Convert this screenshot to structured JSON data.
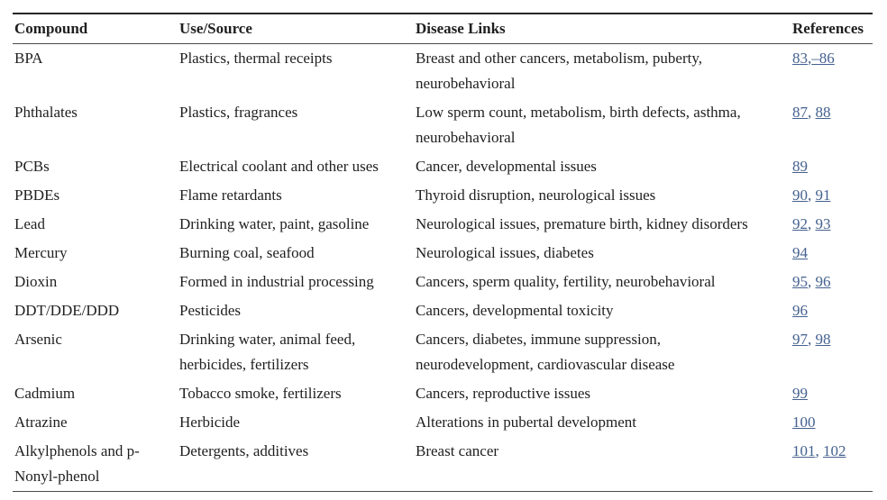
{
  "colors": {
    "link": "#44618f",
    "text": "#1f1f1f",
    "rule_dark": "#262626",
    "rule_mid": "#4a4a4a",
    "background": "#ffffff"
  },
  "table": {
    "columns": [
      "Compound",
      "Use/Source",
      "Disease Links",
      "References"
    ],
    "rows": [
      {
        "compound": "BPA",
        "use_source": "Plastics, thermal receipts",
        "disease_links": "Breast and other cancers, metabolism, puberty, neurobehavioral",
        "references": [
          {
            "text": "83",
            "link": true
          },
          {
            "text": ",",
            "link": false
          },
          {
            "text": "–86",
            "link": true
          }
        ]
      },
      {
        "compound": "Phthalates",
        "use_source": "Plastics, fragrances",
        "disease_links": "Low sperm count, metabolism, birth defects, asthma, neurobehavioral",
        "references": [
          {
            "text": "87",
            "link": true
          },
          {
            "text": ", ",
            "link": false
          },
          {
            "text": "88",
            "link": true
          }
        ]
      },
      {
        "compound": "PCBs",
        "use_source": "Electrical coolant and other uses",
        "disease_links": "Cancer, developmental issues",
        "references": [
          {
            "text": "89",
            "link": true
          }
        ]
      },
      {
        "compound": "PBDEs",
        "use_source": "Flame retardants",
        "disease_links": "Thyroid disruption, neurological issues",
        "references": [
          {
            "text": "90",
            "link": true
          },
          {
            "text": ", ",
            "link": false
          },
          {
            "text": "91",
            "link": true
          }
        ]
      },
      {
        "compound": "Lead",
        "use_source": "Drinking water, paint, gasoline",
        "disease_links": "Neurological issues, premature birth, kidney disorders",
        "references": [
          {
            "text": "92",
            "link": true
          },
          {
            "text": ", ",
            "link": false
          },
          {
            "text": "93",
            "link": true
          }
        ]
      },
      {
        "compound": "Mercury",
        "use_source": "Burning coal, seafood",
        "disease_links": "Neurological issues, diabetes",
        "references": [
          {
            "text": "94",
            "link": true
          }
        ]
      },
      {
        "compound": "Dioxin",
        "use_source": "Formed in industrial processing",
        "disease_links": "Cancers, sperm quality, fertility, neurobehavioral",
        "references": [
          {
            "text": "95",
            "link": true
          },
          {
            "text": ", ",
            "link": false
          },
          {
            "text": "96",
            "link": true
          }
        ]
      },
      {
        "compound": "DDT/DDE/DDD",
        "use_source": "Pesticides",
        "disease_links": "Cancers, developmental toxicity",
        "references": [
          {
            "text": "96",
            "link": true
          }
        ]
      },
      {
        "compound": "Arsenic",
        "use_source": "Drinking water, animal feed, herbicides, fertilizers",
        "disease_links": "Cancers, diabetes, immune suppression, neurodevelopment, cardiovascular disease",
        "references": [
          {
            "text": "97",
            "link": true
          },
          {
            "text": ", ",
            "link": false
          },
          {
            "text": "98",
            "link": true
          }
        ]
      },
      {
        "compound": "Cadmium",
        "use_source": "Tobacco smoke, fertilizers",
        "disease_links": "Cancers, reproductive issues",
        "references": [
          {
            "text": "99",
            "link": true
          }
        ]
      },
      {
        "compound": "Atrazine",
        "use_source": "Herbicide",
        "disease_links": "Alterations in pubertal development",
        "references": [
          {
            "text": "100",
            "link": true
          }
        ]
      },
      {
        "compound": "Alkylphenols and p-Nonyl-phenol",
        "use_source": "Detergents, additives",
        "disease_links": "Breast cancer",
        "references": [
          {
            "text": "101",
            "link": true
          },
          {
            "text": ", ",
            "link": false
          },
          {
            "text": "102",
            "link": true
          }
        ]
      }
    ]
  }
}
